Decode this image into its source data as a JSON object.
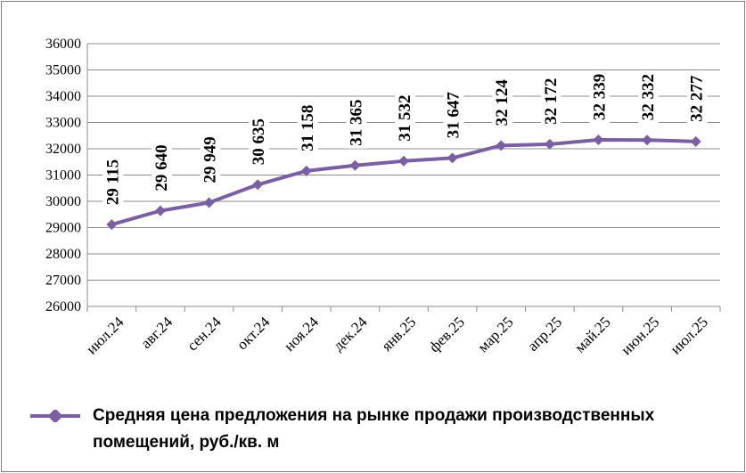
{
  "chart_data": {
    "type": "line",
    "categories": [
      "июл.24",
      "авг.24",
      "сен.24",
      "окт.24",
      "ноя.24",
      "дек.24",
      "янв.25",
      "фев.25",
      "мар.25",
      "апр.25",
      "май.25",
      "июн.25",
      "июл.25"
    ],
    "series": [
      {
        "name": "Средняя цена предложения на рынке продажи  производственных помещений,  руб./кв. м",
        "values": [
          29115,
          29640,
          29949,
          30635,
          31158,
          31365,
          31532,
          31647,
          32124,
          32172,
          32339,
          32332,
          32277
        ],
        "labels": [
          "29 115",
          "29 640",
          "29 949",
          "30 635",
          "31 158",
          "31 365",
          "31 532",
          "31 647",
          "32 124",
          "32 172",
          "32 339",
          "32 332",
          "32 277"
        ],
        "color": "#7b5fa3"
      }
    ],
    "ylim": [
      26000,
      36000
    ],
    "yticks": [
      "26000",
      "27000",
      "28000",
      "29000",
      "30000",
      "31000",
      "32000",
      "33000",
      "34000",
      "35000",
      "36000"
    ],
    "grid": true,
    "legend": "bottom"
  }
}
